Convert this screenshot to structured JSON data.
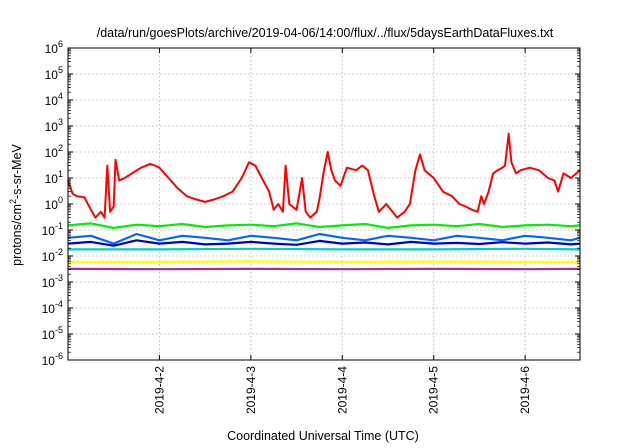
{
  "chart_data": {
    "type": "line",
    "title": "/data/run/goesPlots/archive/2019-04-06/14:00/flux/../flux/5daysEarthDataFluxes.txt",
    "xlabel": "Coordinated Universal Time (UTC)",
    "ylabel": {
      "prefix": "protons/cm",
      "sup": "2",
      "suffix": "-s-sr-MeV"
    },
    "xlim": [
      0.0,
      5.6
    ],
    "yscale": "log",
    "ylim_exp": [
      -6,
      6
    ],
    "grid": true,
    "legend": "none",
    "x_ticks": [
      {
        "x": 1.0,
        "label": "2019-4-2"
      },
      {
        "x": 2.0,
        "label": "2019-4-3"
      },
      {
        "x": 3.0,
        "label": "2019-4-4"
      },
      {
        "x": 4.0,
        "label": "2019-4-5"
      },
      {
        "x": 5.0,
        "label": "2019-4-6"
      }
    ],
    "y_ticks": [
      {
        "exp": 6,
        "base": "10",
        "sup": "6"
      },
      {
        "exp": 5,
        "base": "10",
        "sup": "5"
      },
      {
        "exp": 4,
        "base": "10",
        "sup": "4"
      },
      {
        "exp": 3,
        "base": "10",
        "sup": "3"
      },
      {
        "exp": 2,
        "base": "10",
        "sup": "2"
      },
      {
        "exp": 1,
        "base": "10",
        "sup": "1"
      },
      {
        "exp": 0,
        "base": "10",
        "sup": "0"
      },
      {
        "exp": -1,
        "base": "10",
        "sup": "-1"
      },
      {
        "exp": -2,
        "base": "10",
        "sup": "-2"
      },
      {
        "exp": -3,
        "base": "10",
        "sup": "-3"
      },
      {
        "exp": -4,
        "base": "10",
        "sup": "-4"
      },
      {
        "exp": -5,
        "base": "10",
        "sup": "-5"
      },
      {
        "exp": -6,
        "base": "10",
        "sup": "-6"
      }
    ],
    "series": [
      {
        "color": "#00ee00",
        "points": [
          [
            0.0,
            0.15
          ],
          [
            0.25,
            0.18
          ],
          [
            0.5,
            0.12
          ],
          [
            0.75,
            0.16
          ],
          [
            1.0,
            0.14
          ],
          [
            1.25,
            0.17
          ],
          [
            1.5,
            0.13
          ],
          [
            1.75,
            0.15
          ],
          [
            2.0,
            0.16
          ],
          [
            2.25,
            0.14
          ],
          [
            2.5,
            0.18
          ],
          [
            2.75,
            0.13
          ],
          [
            3.0,
            0.15
          ],
          [
            3.25,
            0.17
          ],
          [
            3.5,
            0.12
          ],
          [
            3.75,
            0.15
          ],
          [
            4.0,
            0.16
          ],
          [
            4.25,
            0.14
          ],
          [
            4.5,
            0.17
          ],
          [
            4.75,
            0.13
          ],
          [
            5.0,
            0.15
          ],
          [
            5.25,
            0.16
          ],
          [
            5.5,
            0.14
          ],
          [
            5.6,
            0.15
          ]
        ]
      },
      {
        "color": "#0066ff",
        "points": [
          [
            0.0,
            0.05
          ],
          [
            0.25,
            0.06
          ],
          [
            0.5,
            0.03
          ],
          [
            0.75,
            0.07
          ],
          [
            1.0,
            0.04
          ],
          [
            1.25,
            0.06
          ],
          [
            1.5,
            0.05
          ],
          [
            1.75,
            0.04
          ],
          [
            2.0,
            0.06
          ],
          [
            2.25,
            0.05
          ],
          [
            2.5,
            0.04
          ],
          [
            2.75,
            0.07
          ],
          [
            3.0,
            0.05
          ],
          [
            3.25,
            0.04
          ],
          [
            3.5,
            0.06
          ],
          [
            3.75,
            0.05
          ],
          [
            4.0,
            0.04
          ],
          [
            4.25,
            0.06
          ],
          [
            4.5,
            0.05
          ],
          [
            4.75,
            0.04
          ],
          [
            5.0,
            0.06
          ],
          [
            5.25,
            0.05
          ],
          [
            5.5,
            0.04
          ],
          [
            5.6,
            0.05
          ]
        ]
      },
      {
        "color": "#0000cc",
        "points": [
          [
            0.0,
            0.03
          ],
          [
            0.25,
            0.035
          ],
          [
            0.5,
            0.025
          ],
          [
            0.75,
            0.04
          ],
          [
            1.0,
            0.03
          ],
          [
            1.25,
            0.035
          ],
          [
            1.5,
            0.028
          ],
          [
            1.75,
            0.03
          ],
          [
            2.0,
            0.035
          ],
          [
            2.25,
            0.03
          ],
          [
            2.5,
            0.027
          ],
          [
            2.75,
            0.038
          ],
          [
            3.0,
            0.03
          ],
          [
            3.25,
            0.033
          ],
          [
            3.5,
            0.028
          ],
          [
            3.75,
            0.035
          ],
          [
            4.0,
            0.03
          ],
          [
            4.25,
            0.032
          ],
          [
            4.5,
            0.029
          ],
          [
            4.75,
            0.034
          ],
          [
            5.0,
            0.03
          ],
          [
            5.25,
            0.033
          ],
          [
            5.5,
            0.028
          ],
          [
            5.6,
            0.03
          ]
        ]
      },
      {
        "color": "#00cccc",
        "points": [
          [
            0.0,
            0.018
          ],
          [
            1.0,
            0.018
          ],
          [
            2.0,
            0.019
          ],
          [
            3.0,
            0.018
          ],
          [
            4.0,
            0.018
          ],
          [
            5.0,
            0.019
          ],
          [
            5.6,
            0.018
          ]
        ]
      },
      {
        "color": "#ffff00",
        "points": [
          [
            0.0,
            0.006
          ],
          [
            1.0,
            0.006
          ],
          [
            2.0,
            0.0062
          ],
          [
            3.0,
            0.006
          ],
          [
            4.0,
            0.0061
          ],
          [
            5.0,
            0.006
          ],
          [
            5.6,
            0.006
          ]
        ]
      },
      {
        "color": "#993399",
        "points": [
          [
            0.0,
            0.0032
          ],
          [
            1.0,
            0.0031
          ],
          [
            2.0,
            0.0032
          ],
          [
            3.0,
            0.0031
          ],
          [
            4.0,
            0.0032
          ],
          [
            5.0,
            0.0031
          ],
          [
            5.6,
            0.0032
          ]
        ]
      },
      {
        "color": "#ff0000",
        "points": [
          [
            0.0,
            8
          ],
          [
            0.05,
            2.5
          ],
          [
            0.1,
            2
          ],
          [
            0.18,
            1.8
          ],
          [
            0.25,
            0.6
          ],
          [
            0.3,
            0.3
          ],
          [
            0.36,
            0.5
          ],
          [
            0.4,
            0.3
          ],
          [
            0.43,
            30
          ],
          [
            0.46,
            0.5
          ],
          [
            0.5,
            0.8
          ],
          [
            0.52,
            50
          ],
          [
            0.56,
            8
          ],
          [
            0.62,
            10
          ],
          [
            0.7,
            15
          ],
          [
            0.8,
            25
          ],
          [
            0.9,
            35
          ],
          [
            0.95,
            30
          ],
          [
            1.0,
            25
          ],
          [
            1.1,
            10
          ],
          [
            1.2,
            4
          ],
          [
            1.3,
            2
          ],
          [
            1.4,
            1.5
          ],
          [
            1.5,
            1.2
          ],
          [
            1.6,
            1.5
          ],
          [
            1.7,
            2
          ],
          [
            1.8,
            3
          ],
          [
            1.9,
            10
          ],
          [
            1.98,
            40
          ],
          [
            2.05,
            30
          ],
          [
            2.12,
            10
          ],
          [
            2.2,
            3
          ],
          [
            2.25,
            0.6
          ],
          [
            2.3,
            1
          ],
          [
            2.35,
            0.5
          ],
          [
            2.38,
            30
          ],
          [
            2.42,
            1
          ],
          [
            2.5,
            0.6
          ],
          [
            2.56,
            10
          ],
          [
            2.6,
            0.5
          ],
          [
            2.65,
            0.3
          ],
          [
            2.72,
            0.5
          ],
          [
            2.75,
            1.5
          ],
          [
            2.8,
            20
          ],
          [
            2.84,
            100
          ],
          [
            2.88,
            20
          ],
          [
            2.92,
            8
          ],
          [
            2.98,
            5
          ],
          [
            3.05,
            25
          ],
          [
            3.15,
            20
          ],
          [
            3.22,
            30
          ],
          [
            3.28,
            20
          ],
          [
            3.35,
            2
          ],
          [
            3.4,
            0.5
          ],
          [
            3.48,
            1
          ],
          [
            3.55,
            0.5
          ],
          [
            3.6,
            0.3
          ],
          [
            3.68,
            0.5
          ],
          [
            3.74,
            1
          ],
          [
            3.8,
            20
          ],
          [
            3.85,
            80
          ],
          [
            3.9,
            20
          ],
          [
            4.0,
            10
          ],
          [
            4.1,
            3
          ],
          [
            4.2,
            2
          ],
          [
            4.28,
            1
          ],
          [
            4.35,
            0.8
          ],
          [
            4.42,
            0.6
          ],
          [
            4.48,
            0.5
          ],
          [
            4.52,
            2
          ],
          [
            4.55,
            1
          ],
          [
            4.6,
            3
          ],
          [
            4.65,
            15
          ],
          [
            4.7,
            20
          ],
          [
            4.75,
            25
          ],
          [
            4.78,
            30
          ],
          [
            4.82,
            500
          ],
          [
            4.85,
            40
          ],
          [
            4.9,
            15
          ],
          [
            4.95,
            20
          ],
          [
            5.05,
            25
          ],
          [
            5.15,
            20
          ],
          [
            5.25,
            10
          ],
          [
            5.32,
            8
          ],
          [
            5.36,
            3
          ],
          [
            5.42,
            15
          ],
          [
            5.5,
            10
          ],
          [
            5.6,
            20
          ]
        ]
      }
    ]
  }
}
